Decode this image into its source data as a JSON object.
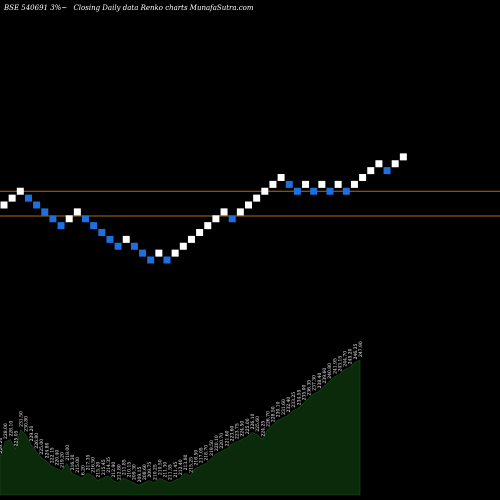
{
  "header": {
    "ticker": "BSE 540691 3%~",
    "title": "Closing Daily data  Renko  charts MunafaSutra.com"
  },
  "colors": {
    "background": "#000000",
    "up_brick": "#ffffff",
    "down_brick": "#1f6fdf",
    "reference_line": "#b06a10",
    "volume_fill": "#0a2a0a"
  },
  "chart_data": {
    "type": "renko",
    "title": "Closing Daily data  Renko  charts MunafaSutra.com",
    "bricks": [
      {
        "level": 205.0,
        "dir": "up"
      },
      {
        "level": 207.5,
        "dir": "up"
      },
      {
        "level": 210.0,
        "dir": "up"
      },
      {
        "level": 207.5,
        "dir": "down"
      },
      {
        "level": 205.0,
        "dir": "down"
      },
      {
        "level": 202.5,
        "dir": "down"
      },
      {
        "level": 200.0,
        "dir": "down"
      },
      {
        "level": 197.5,
        "dir": "down"
      },
      {
        "level": 200.0,
        "dir": "up"
      },
      {
        "level": 202.5,
        "dir": "up"
      },
      {
        "level": 200.0,
        "dir": "down"
      },
      {
        "level": 197.5,
        "dir": "down"
      },
      {
        "level": 195.0,
        "dir": "down"
      },
      {
        "level": 192.5,
        "dir": "down"
      },
      {
        "level": 190.0,
        "dir": "down"
      },
      {
        "level": 192.5,
        "dir": "up"
      },
      {
        "level": 190.0,
        "dir": "down"
      },
      {
        "level": 187.5,
        "dir": "down"
      },
      {
        "level": 185.0,
        "dir": "down"
      },
      {
        "level": 187.5,
        "dir": "up"
      },
      {
        "level": 185.0,
        "dir": "down"
      },
      {
        "level": 187.5,
        "dir": "up"
      },
      {
        "level": 190.0,
        "dir": "up"
      },
      {
        "level": 192.5,
        "dir": "up"
      },
      {
        "level": 195.0,
        "dir": "up"
      },
      {
        "level": 197.5,
        "dir": "up"
      },
      {
        "level": 200.0,
        "dir": "up"
      },
      {
        "level": 202.5,
        "dir": "up"
      },
      {
        "level": 200.0,
        "dir": "down"
      },
      {
        "level": 202.5,
        "dir": "up"
      },
      {
        "level": 205.0,
        "dir": "up"
      },
      {
        "level": 207.5,
        "dir": "up"
      },
      {
        "level": 210.0,
        "dir": "up"
      },
      {
        "level": 212.5,
        "dir": "up"
      },
      {
        "level": 215.0,
        "dir": "up"
      },
      {
        "level": 212.5,
        "dir": "down"
      },
      {
        "level": 210.0,
        "dir": "down"
      },
      {
        "level": 212.5,
        "dir": "up"
      },
      {
        "level": 210.0,
        "dir": "down"
      },
      {
        "level": 212.5,
        "dir": "up"
      },
      {
        "level": 210.0,
        "dir": "down"
      },
      {
        "level": 212.5,
        "dir": "up"
      },
      {
        "level": 210.0,
        "dir": "down"
      },
      {
        "level": 212.5,
        "dir": "up"
      },
      {
        "level": 215.0,
        "dir": "up"
      },
      {
        "level": 217.5,
        "dir": "up"
      },
      {
        "level": 220.0,
        "dir": "up"
      },
      {
        "level": 217.5,
        "dir": "down"
      },
      {
        "level": 220.0,
        "dir": "up"
      },
      {
        "level": 222.5,
        "dir": "up"
      }
    ],
    "reference_lines": [
      210.0,
      201.0
    ],
    "volume_labels": [
      "226.20",
      "228.00",
      "228.10",
      "225.05",
      "231.50",
      "230.80",
      "229.20",
      "226.80",
      "225.00",
      "224.80",
      "222.15",
      "220.40",
      "219.20",
      "218.00",
      "216.30",
      "215.00",
      "6.20",
      "217.35",
      "216.50",
      "215.20",
      "215.45",
      "214.35",
      "212.90",
      "212.80",
      "211.85",
      "210.15",
      "209.30",
      "209.15",
      "208.60",
      "209.75",
      "210.25",
      "210.50",
      "211.30",
      "211.55",
      "211.45",
      "212.40",
      "213.80",
      "215.25",
      "216.50",
      "217.05",
      "218.70",
      "219.50",
      "220.10",
      "220.70",
      "221.60",
      "223.60",
      "223.75",
      "224.50",
      "225.00",
      "226.10",
      "225.60",
      "224.25",
      "226.70",
      "228.50",
      "230.10",
      "231.60",
      "232.40",
      "233.25",
      "234.55",
      "235.00",
      "236.35",
      "237.30",
      "238.40",
      "239.60",
      "240.80",
      "241.95",
      "243.15",
      "244.70",
      "245.20",
      "246.35",
      "247.90"
    ],
    "volume_values": [
      32,
      44,
      46,
      38,
      54,
      50,
      42,
      36,
      31,
      28,
      24,
      22,
      20,
      26,
      18,
      16,
      14,
      18,
      16,
      12,
      14,
      16,
      12,
      10,
      14,
      12,
      10,
      8,
      10,
      12,
      10,
      14,
      12,
      10,
      12,
      14,
      18,
      16,
      22,
      24,
      26,
      30,
      34,
      36,
      38,
      42,
      44,
      46,
      48,
      52,
      50,
      46,
      54,
      58,
      62,
      64,
      66,
      70,
      72,
      76,
      80,
      84,
      86,
      90,
      94,
      98,
      100,
      104,
      106,
      110,
      112
    ]
  }
}
